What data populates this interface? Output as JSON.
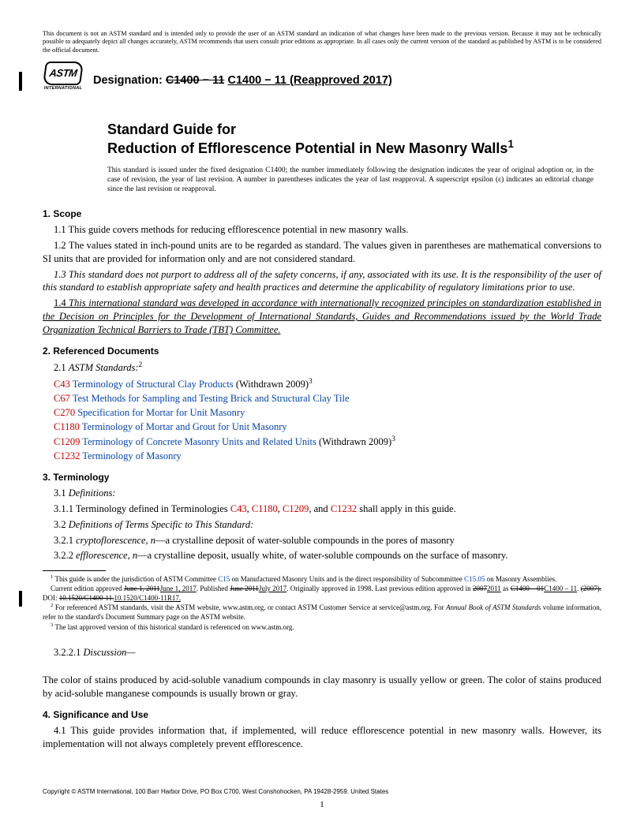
{
  "disclaimer": "This document is not an ASTM standard and is intended only to provide the user of an ASTM standard an indication of what changes have been made to the previous version. Because it may not be technically possible to adequately depict all changes accurately, ASTM recommends that users consult prior editions as appropriate. In all cases only the current version of the standard as published by ASTM is to be considered the official document.",
  "logo": {
    "top": "",
    "mid": "ASTM",
    "bot": "INTERNATIONAL"
  },
  "designation": {
    "label": "Designation:",
    "old": "C1400 − 11",
    "new": "C1400 − 11 (Reapproved 2017)"
  },
  "title_line1": "Standard Guide for",
  "title_line2": "Reduction of Efflorescence Potential in New Masonry Walls",
  "title_sup": "1",
  "issuance": "This standard is issued under the fixed designation C1400; the number immediately following the designation indicates the year of original adoption or, in the case of revision, the year of last revision. A number in parentheses indicates the year of last reapproval. A superscript epsilon (ε) indicates an editorial change since the last revision or reapproval.",
  "s1_head": "1. Scope",
  "s1_1": "1.1 This guide covers methods for reducing efflorescence potential in new masonry walls.",
  "s1_2": "1.2 The values stated in inch-pound units are to be regarded as standard. The values given in parentheses are mathematical conversions to SI units that are provided for information only and are not considered standard.",
  "s1_3": "1.3 This standard does not purport to address all of the safety concerns, if any, associated with its use. It is the responsibility of the user of this standard to establish appropriate safety and health practices and determine the applicability of regulatory limitations prior to use.",
  "s1_4_num": "1.4",
  "s1_4": " This international standard was developed in accordance with internationally recognized principles on standardization established in the Decision on Principles for the Development of International Standards, Guides and Recommendations issued by the World Trade Organization Technical Barriers to Trade (TBT) Committee.",
  "s2_head": "2. Referenced Documents",
  "s2_1_label": "2.1 ",
  "s2_1_italic": "ASTM Standards:",
  "s2_1_sup": "2",
  "refs": [
    {
      "code": "C43",
      "title": "Terminology of Structural Clay Products",
      "tail": " (Withdrawn 2009)",
      "sup": "3"
    },
    {
      "code": "C67",
      "title": "Test Methods for Sampling and Testing Brick and Structural Clay Tile",
      "tail": "",
      "sup": ""
    },
    {
      "code": "C270",
      "title": "Specification for Mortar for Unit Masonry",
      "tail": "",
      "sup": ""
    },
    {
      "code": "C1180",
      "title": "Terminology of Mortar and Grout for Unit Masonry",
      "tail": "",
      "sup": ""
    },
    {
      "code": "C1209",
      "title": "Terminology of Concrete Masonry Units and Related Units",
      "tail": " (Withdrawn 2009)",
      "sup": "3"
    },
    {
      "code": "C1232",
      "title": "Terminology of Masonry",
      "tail": "",
      "sup": ""
    }
  ],
  "s3_head": "3. Terminology",
  "s3_1": "3.1 ",
  "s3_1_italic": "Definitions:",
  "s3_1_1_pre": "3.1.1 Terminology defined in Terminologies ",
  "s3_1_1_links": [
    "C43",
    "C1180",
    "C1209",
    "C1232"
  ],
  "s3_1_1_post": " shall apply in this guide.",
  "s3_2": "3.2 ",
  "s3_2_italic": "Definitions of Terms Specific to This Standard:",
  "s3_2_1_num": "3.2.1 ",
  "s3_2_1_term": "cryptoflorescence, n",
  "s3_2_1_def": "—a crystalline deposit of water-soluble compounds in the pores of masonry",
  "s3_2_2_num": "3.2.2 ",
  "s3_2_2_term": "efflorescence, n",
  "s3_2_2_def": "—a crystalline deposit, usually white, of water-soluble compounds on the surface of masonry.",
  "fn1_pre": " This guide is under the jurisdiction of ASTM Committee ",
  "fn1_link1": "C15",
  "fn1_mid": " on Manufactured Masonry Units and is the direct responsibility of Subcommittee ",
  "fn1_link2": "C15.05",
  "fn1_post": " on Masonry Assemblies.",
  "fn1b_a": "Current edition approved ",
  "fn1b_s1": "June 1, 2011",
  "fn1b_u1": "June 1, 2017",
  "fn1b_b": ". Published ",
  "fn1b_s2": "June 2011",
  "fn1b_u2": "July 2017",
  "fn1b_c": ". Originally approved in 1998. Last previous edition approved in ",
  "fn1b_s3": "2007",
  "fn1b_u3": "2011",
  "fn1b_d": " as ",
  "fn1b_s4": "C1400 – 01",
  "fn1b_u4": "C1400 – 11",
  "fn1b_e": ". ",
  "fn1b_s5": "(2007).",
  "fn1b_f": " DOI: ",
  "fn1b_s6": "10.1520/C1400-11.",
  "fn1b_u5": "10.1520/C1400-11R17.",
  "fn2_pre": " For referenced ASTM standards, visit the ASTM website, www.astm.org, or contact ASTM Customer Service at service@astm.org. For ",
  "fn2_italic": "Annual Book of ASTM Standards",
  "fn2_post": " volume information, refer to the standard's Document Summary page on the ASTM website.",
  "fn3": " The last approved version of this historical standard is referenced on www.astm.org.",
  "s3_2_2_1": "3.2.2.1 ",
  "s3_2_2_1_italic": "Discussion—",
  "discussion_body": "The color of stains produced by acid-soluble vanadium compounds in clay masonry is usually yellow or green. The color of stains produced by acid-soluble manganese compounds is usually brown or gray.",
  "s4_head": "4. Significance and Use",
  "s4_1": "4.1 This guide provides information that, if implemented, will reduce efflorescence potential in new masonry walls. However, its implementation will not always completely prevent efflorescence.",
  "copyright": "Copyright © ASTM International, 100 Barr Harbor Drive, PO Box C700, West Conshohocken, PA 19428-2959. United States",
  "pagenum": "1"
}
